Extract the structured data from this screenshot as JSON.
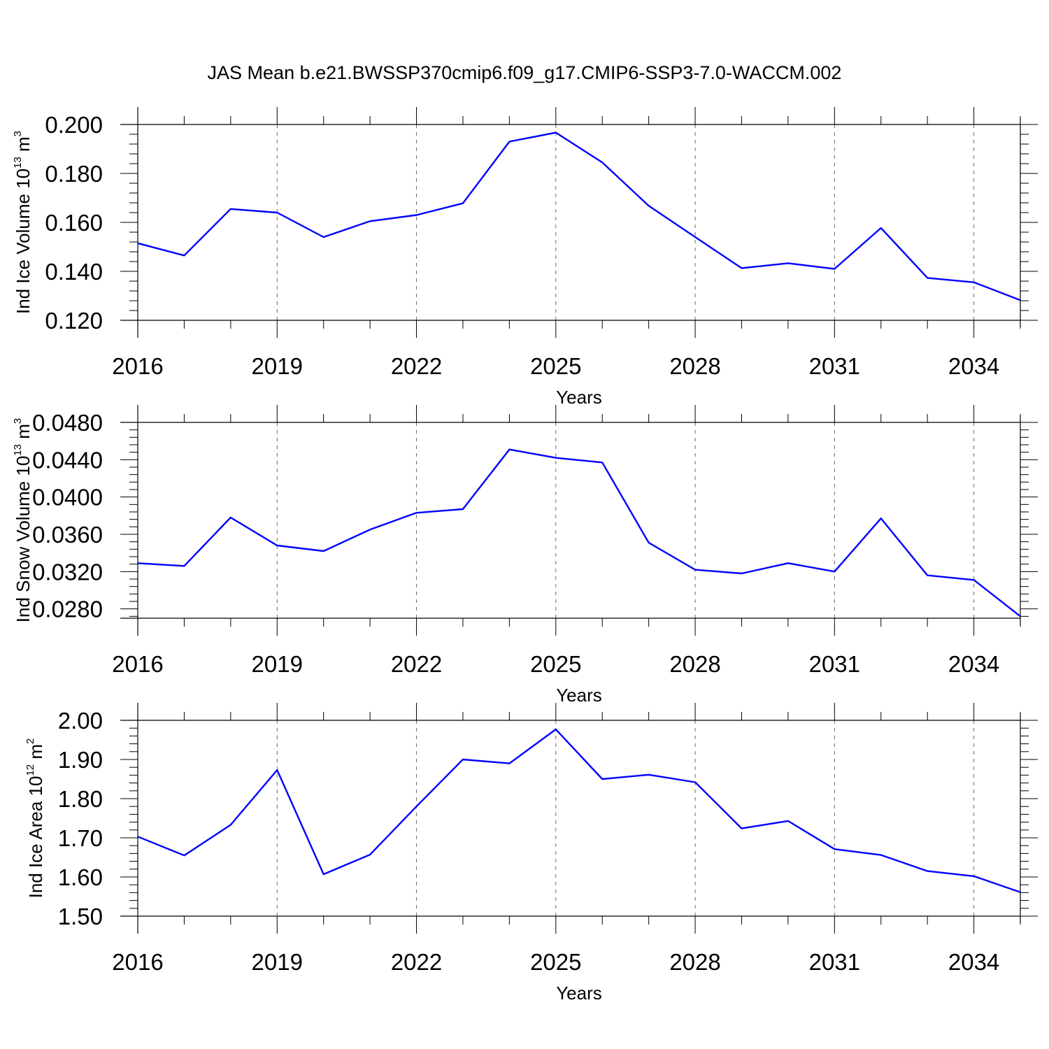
{
  "title": "JAS Mean b.e21.BWSSP370cmip6.f09_g17.CMIP6-SSP3-7.0-WACCM.002",
  "colors": {
    "line": "#0000ff",
    "axis": "#000000",
    "grid": "#666666"
  },
  "chart_data": [
    {
      "type": "line",
      "ylabel": {
        "prefix": "Ind Ice Volume 10",
        "exp": "13",
        "unit": " m",
        "unit_exp": "3"
      },
      "xlabel": "Years",
      "xlim": [
        2016,
        2035
      ],
      "ylim": [
        0.12,
        0.2
      ],
      "ytick_values": [
        0.12,
        0.14,
        0.16,
        0.18,
        0.2
      ],
      "ytick_labels": [
        "0.120",
        "0.140",
        "0.160",
        "0.180",
        "0.200"
      ],
      "xtick_values": [
        2016,
        2019,
        2022,
        2025,
        2028,
        2031,
        2034
      ],
      "xtick_labels": [
        "2016",
        "2019",
        "2022",
        "2025",
        "2028",
        "2031",
        "2034"
      ],
      "grid": "vertical-dashed-at-major-x-ticks",
      "x": [
        2016,
        2017,
        2018,
        2019,
        2020,
        2021,
        2022,
        2023,
        2024,
        2025,
        2026,
        2027,
        2028,
        2029,
        2030,
        2031,
        2032,
        2033,
        2034,
        2035
      ],
      "values": [
        0.1515,
        0.1465,
        0.1655,
        0.164,
        0.154,
        0.1605,
        0.163,
        0.1678,
        0.193,
        0.1967,
        0.1845,
        0.1668,
        0.154,
        0.1413,
        0.1433,
        0.141,
        0.1577,
        0.1373,
        0.1355,
        0.1282
      ]
    },
    {
      "type": "line",
      "ylabel": {
        "prefix": "Ind Snow Volume 10",
        "exp": "13",
        "unit": " m",
        "unit_exp": "3"
      },
      "xlabel": "Years",
      "xlim": [
        2016,
        2035
      ],
      "ylim": [
        0.027,
        0.048
      ],
      "ytick_values": [
        0.028,
        0.032,
        0.036,
        0.04,
        0.044,
        0.048
      ],
      "ytick_labels": [
        "0.0280",
        "0.0320",
        "0.0360",
        "0.0400",
        "0.0440",
        "0.0480"
      ],
      "xtick_values": [
        2016,
        2019,
        2022,
        2025,
        2028,
        2031,
        2034
      ],
      "xtick_labels": [
        "2016",
        "2019",
        "2022",
        "2025",
        "2028",
        "2031",
        "2034"
      ],
      "grid": "vertical-dashed-at-major-x-ticks",
      "x": [
        2016,
        2017,
        2018,
        2019,
        2020,
        2021,
        2022,
        2023,
        2024,
        2025,
        2026,
        2027,
        2028,
        2029,
        2030,
        2031,
        2032,
        2033,
        2034,
        2035
      ],
      "values": [
        0.0329,
        0.0326,
        0.0378,
        0.0348,
        0.0342,
        0.0365,
        0.0383,
        0.0387,
        0.0451,
        0.0442,
        0.0437,
        0.0351,
        0.0322,
        0.0318,
        0.0329,
        0.032,
        0.0377,
        0.0316,
        0.0311,
        0.0272
      ]
    },
    {
      "type": "line",
      "ylabel": {
        "prefix": "Ind Ice Area 10",
        "exp": "12",
        "unit": " m",
        "unit_exp": "2"
      },
      "xlabel": "Years",
      "xlim": [
        2016,
        2035
      ],
      "ylim": [
        1.5,
        2.0
      ],
      "ytick_values": [
        1.5,
        1.6,
        1.7,
        1.8,
        1.9,
        2.0
      ],
      "ytick_labels": [
        "1.50",
        "1.60",
        "1.70",
        "1.80",
        "1.90",
        "2.00"
      ],
      "xtick_values": [
        2016,
        2019,
        2022,
        2025,
        2028,
        2031,
        2034
      ],
      "xtick_labels": [
        "2016",
        "2019",
        "2022",
        "2025",
        "2028",
        "2031",
        "2034"
      ],
      "grid": "vertical-dashed-at-major-x-ticks",
      "x": [
        2016,
        2017,
        2018,
        2019,
        2020,
        2021,
        2022,
        2023,
        2024,
        2025,
        2026,
        2027,
        2028,
        2029,
        2030,
        2031,
        2032,
        2033,
        2034,
        2035
      ],
      "values": [
        1.703,
        1.655,
        1.733,
        1.873,
        1.607,
        1.657,
        1.78,
        1.9,
        1.89,
        1.977,
        1.85,
        1.861,
        1.842,
        1.724,
        1.743,
        1.671,
        1.656,
        1.615,
        1.602,
        1.561
      ]
    }
  ]
}
